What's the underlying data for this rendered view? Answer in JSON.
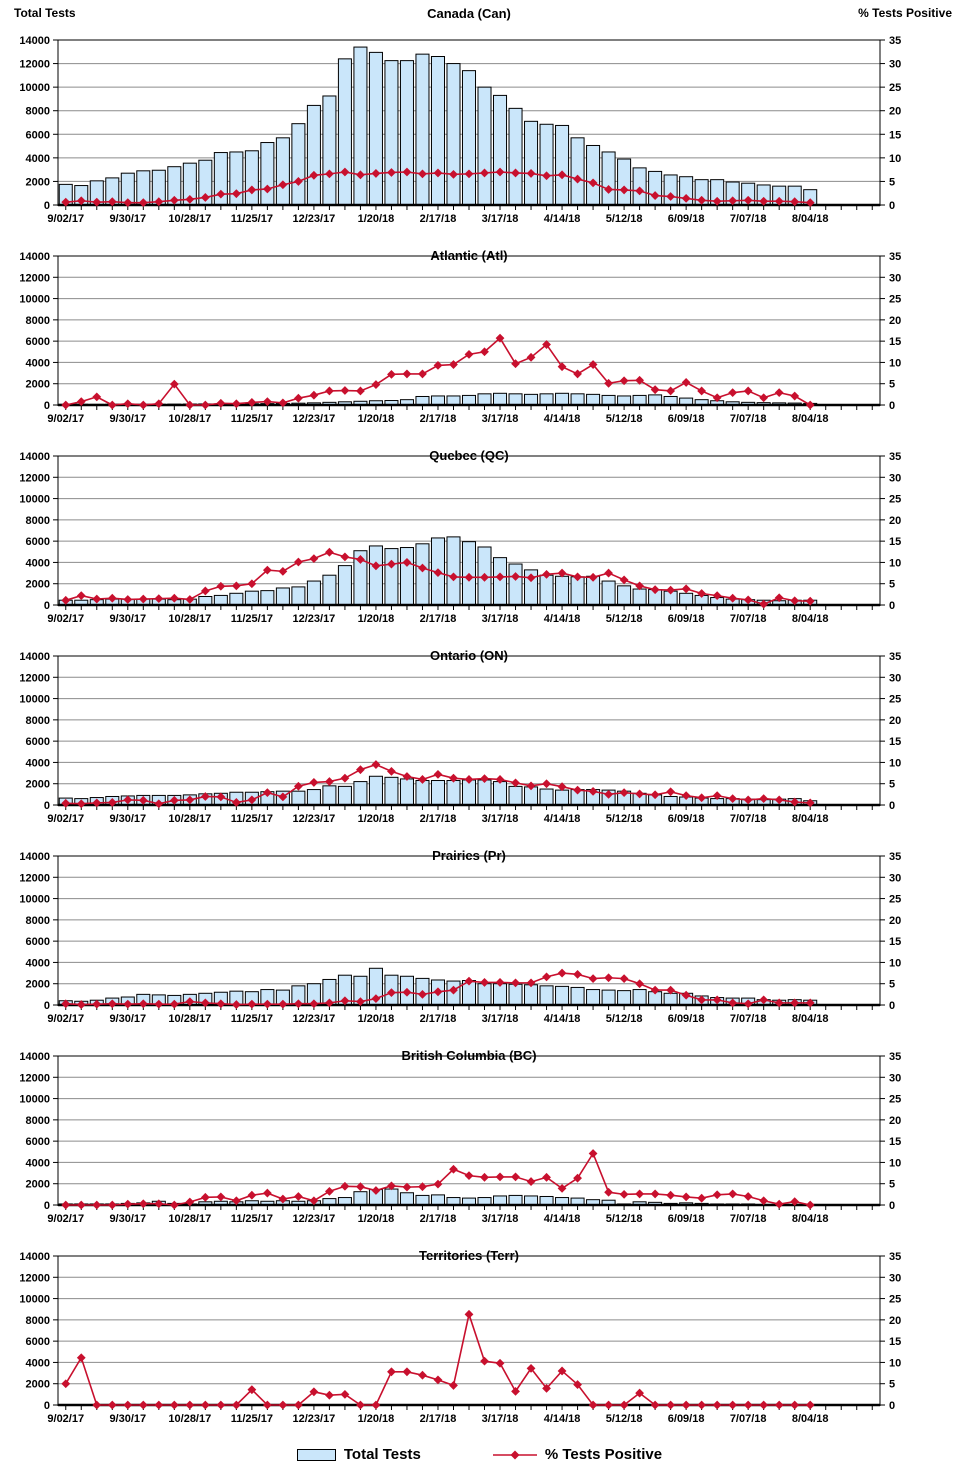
{
  "page": {
    "left_axis_label": "Total Tests",
    "right_axis_label": "% Tests  Positive"
  },
  "legend": {
    "bar_label": "Total Tests",
    "line_label": "% Tests Positive"
  },
  "colors": {
    "background": "#FFFFFF",
    "bar_fill": "#CAE6FA",
    "bar_border": "#000000",
    "line": "#C8102E",
    "grid": "#8C8C8C",
    "axis": "#000000",
    "text": "#000000"
  },
  "axes": {
    "y_left": {
      "label": "Total Tests",
      "min": 0,
      "max": 14000,
      "step": 2000
    },
    "y_right": {
      "label": "% Tests Positive",
      "min": 0,
      "max": 35,
      "step": 5
    },
    "x": {
      "tick_labels": [
        "9/02/17",
        "9/30/17",
        "10/28/17",
        "11/25/17",
        "12/23/17",
        "1/20/18",
        "2/17/18",
        "3/17/18",
        "4/14/18",
        "5/12/18",
        "6/09/18",
        "7/07/18",
        "8/04/18"
      ],
      "label_every_n_weeks": 4,
      "weeks_total": 53,
      "weeks_with_data": 49
    }
  },
  "chart_data": [
    {
      "type": "bar+line",
      "title": "Canada (Can)",
      "series": [
        {
          "name": "Total Tests",
          "axis": "left",
          "values": [
            1750,
            1650,
            2050,
            2300,
            2700,
            2900,
            2950,
            3250,
            3550,
            3800,
            4450,
            4500,
            4600,
            5300,
            5700,
            6900,
            8450,
            9250,
            12400,
            13400,
            12950,
            12250,
            12250,
            12800,
            12600,
            12000,
            11400,
            10000,
            9300,
            8200,
            7100,
            6850,
            6750,
            5700,
            5050,
            4500,
            3900,
            3150,
            2850,
            2550,
            2400,
            2150,
            2150,
            1950,
            1850,
            1700,
            1600,
            1600,
            1300
          ]
        },
        {
          "name": "% Tests Positive",
          "axis": "right",
          "values": [
            0.6,
            0.9,
            0.6,
            0.7,
            0.5,
            0.5,
            0.7,
            1.0,
            1.2,
            1.6,
            2.3,
            2.4,
            3.2,
            3.4,
            4.3,
            5.0,
            6.3,
            6.6,
            7.0,
            6.4,
            6.7,
            6.9,
            7.0,
            6.6,
            6.8,
            6.5,
            6.6,
            6.8,
            7.0,
            6.8,
            6.7,
            6.2,
            6.4,
            5.5,
            4.7,
            3.3,
            3.2,
            3.0,
            2.0,
            1.8,
            1.4,
            1.0,
            0.8,
            0.9,
            1.0,
            0.8,
            0.8,
            0.7,
            0.5
          ]
        }
      ]
    },
    {
      "type": "bar+line",
      "title": "Atlantic (Atl)",
      "series": [
        {
          "name": "Total Tests",
          "axis": "left",
          "values": [
            60,
            70,
            60,
            70,
            60,
            60,
            70,
            80,
            90,
            100,
            100,
            110,
            120,
            130,
            150,
            170,
            200,
            250,
            300,
            350,
            400,
            420,
            500,
            800,
            850,
            850,
            900,
            1050,
            1100,
            1050,
            1000,
            1050,
            1100,
            1050,
            1000,
            900,
            850,
            900,
            950,
            800,
            650,
            500,
            400,
            300,
            250,
            220,
            200,
            180,
            150
          ]
        },
        {
          "name": "% Tests Positive",
          "axis": "right",
          "values": [
            0,
            0.8,
            1.9,
            0,
            0.3,
            0,
            0.3,
            4.9,
            0,
            0,
            0.4,
            0.3,
            0.6,
            0.8,
            0.5,
            1.6,
            2.3,
            3.3,
            3.4,
            3.3,
            4.8,
            7.2,
            7.3,
            7.3,
            9.3,
            9.5,
            11.9,
            12.5,
            15.7,
            9.7,
            11.2,
            14.2,
            9.0,
            7.3,
            9.5,
            5.1,
            5.7,
            5.8,
            3.6,
            3.3,
            5.3,
            3.3,
            1.7,
            2.9,
            3.3,
            1.7,
            2.9,
            2.1,
            0
          ]
        }
      ]
    },
    {
      "type": "bar+line",
      "title": "Quebec (QC)",
      "series": [
        {
          "name": "Total Tests",
          "axis": "left",
          "values": [
            450,
            450,
            500,
            550,
            550,
            550,
            550,
            500,
            550,
            800,
            900,
            1100,
            1300,
            1350,
            1600,
            1700,
            2250,
            2800,
            3700,
            5100,
            5550,
            5300,
            5400,
            5750,
            6300,
            6400,
            5950,
            5450,
            4450,
            3850,
            3300,
            2800,
            2700,
            2650,
            2700,
            2250,
            1800,
            1500,
            1450,
            1300,
            1100,
            900,
            700,
            550,
            500,
            450,
            400,
            450,
            450
          ]
        },
        {
          "name": "% Tests Positive",
          "axis": "right",
          "values": [
            1.1,
            2.2,
            1.4,
            1.6,
            1.3,
            1.4,
            1.5,
            1.6,
            1.3,
            3.3,
            4.4,
            4.5,
            5.0,
            8.2,
            7.9,
            10.1,
            10.9,
            12.4,
            11.3,
            10.7,
            9.2,
            9.6,
            10.0,
            8.7,
            7.6,
            6.6,
            6.5,
            6.5,
            6.6,
            6.7,
            6.4,
            7.2,
            7.5,
            6.6,
            6.5,
            7.5,
            5.9,
            4.5,
            3.6,
            3.5,
            3.8,
            2.7,
            2.2,
            1.6,
            1.2,
            0.2,
            1.7,
            1.0,
            0.9
          ]
        }
      ]
    },
    {
      "type": "bar+line",
      "title": "Ontario (ON)",
      "series": [
        {
          "name": "Total Tests",
          "axis": "left",
          "values": [
            650,
            600,
            700,
            800,
            850,
            900,
            900,
            900,
            950,
            1050,
            1100,
            1200,
            1200,
            1250,
            1300,
            1300,
            1450,
            1800,
            1750,
            2200,
            2700,
            2600,
            2450,
            2300,
            2300,
            2300,
            2350,
            2350,
            2200,
            1750,
            1700,
            1500,
            1400,
            1450,
            1450,
            1400,
            1300,
            1100,
            950,
            800,
            750,
            650,
            600,
            600,
            550,
            500,
            550,
            600,
            400
          ]
        },
        {
          "name": "% Tests Positive",
          "axis": "right",
          "values": [
            0.4,
            0.3,
            0.5,
            0.6,
            1.2,
            1.1,
            0.3,
            1.1,
            1.2,
            2.0,
            1.9,
            0.6,
            1.2,
            2.9,
            1.9,
            4.4,
            5.3,
            5.5,
            6.3,
            8.3,
            9.5,
            7.9,
            6.7,
            6.0,
            7.2,
            6.3,
            6.0,
            6.2,
            6.0,
            5.2,
            4.5,
            5.0,
            4.3,
            3.5,
            3.2,
            2.5,
            2.9,
            2.6,
            2.4,
            3.1,
            2.2,
            1.7,
            2.2,
            1.5,
            1.2,
            1.5,
            1.2,
            0.7,
            0.5
          ]
        }
      ]
    },
    {
      "type": "bar+line",
      "title": "Prairies (Pr)",
      "series": [
        {
          "name": "Total Tests",
          "axis": "left",
          "values": [
            400,
            350,
            450,
            650,
            750,
            1000,
            950,
            900,
            1000,
            1100,
            1200,
            1300,
            1250,
            1450,
            1400,
            1800,
            2000,
            2400,
            2800,
            2700,
            3450,
            2800,
            2700,
            2500,
            2350,
            2250,
            2300,
            2000,
            2000,
            1950,
            1900,
            1800,
            1750,
            1650,
            1450,
            1400,
            1350,
            1450,
            1250,
            1100,
            1100,
            850,
            700,
            650,
            650,
            500,
            450,
            500,
            450
          ]
        },
        {
          "name": "% Tests Positive",
          "axis": "right",
          "values": [
            0.3,
            0.1,
            0.2,
            0.3,
            0.2,
            0.3,
            0.2,
            0.2,
            0.8,
            0.5,
            0.3,
            0.1,
            0.2,
            0.2,
            0.2,
            0.3,
            0.3,
            0.5,
            1.0,
            0.8,
            1.5,
            2.9,
            3.0,
            2.5,
            3.1,
            3.5,
            5.6,
            5.3,
            5.3,
            5.2,
            5.2,
            6.6,
            7.5,
            7.2,
            6.2,
            6.4,
            6.2,
            5.0,
            3.5,
            3.5,
            2.3,
            1.2,
            1.2,
            0.5,
            0.3,
            1.2,
            0.5,
            0.5,
            0.5
          ]
        }
      ]
    },
    {
      "type": "bar+line",
      "title": "British Columbia (BC)",
      "series": [
        {
          "name": "Total Tests",
          "axis": "left",
          "values": [
            100,
            100,
            100,
            100,
            150,
            200,
            350,
            150,
            100,
            300,
            350,
            300,
            400,
            350,
            400,
            350,
            400,
            600,
            700,
            1250,
            1450,
            1500,
            1150,
            900,
            950,
            700,
            650,
            700,
            850,
            900,
            850,
            800,
            700,
            650,
            500,
            450,
            100,
            300,
            250,
            150,
            200,
            150,
            100,
            100,
            100,
            50,
            50,
            50,
            50
          ]
        },
        {
          "name": "% Tests Positive",
          "axis": "right",
          "values": [
            0,
            0,
            0,
            0,
            0.2,
            0.3,
            0.3,
            0,
            0.7,
            1.8,
            1.9,
            1.0,
            2.3,
            2.8,
            1.4,
            2.0,
            1.0,
            3.2,
            4.4,
            4.3,
            3.4,
            4.5,
            4.2,
            4.3,
            4.9,
            8.4,
            6.9,
            6.5,
            6.6,
            6.6,
            5.5,
            6.5,
            3.9,
            6.3,
            12.1,
            3.0,
            2.5,
            2.6,
            2.6,
            2.3,
            1.9,
            1.6,
            2.4,
            2.6,
            2.0,
            1.0,
            0.2,
            0.8,
            0
          ]
        }
      ]
    },
    {
      "type": "bar+line",
      "title": "Territories (Terr)",
      "series": [
        {
          "name": "Total Tests",
          "axis": "left",
          "values": [
            0,
            0,
            0,
            0,
            0,
            0,
            0,
            0,
            0,
            0,
            0,
            0,
            0,
            0,
            0,
            0,
            0,
            0,
            0,
            0,
            0,
            0,
            0,
            0,
            0,
            0,
            0,
            0,
            0,
            0,
            0,
            0,
            0,
            0,
            0,
            0,
            0,
            0,
            0,
            0,
            0,
            0,
            0,
            0,
            0,
            0,
            0,
            0,
            0
          ]
        },
        {
          "name": "% Tests Positive",
          "axis": "right",
          "values": [
            5.0,
            11.1,
            0,
            0,
            0,
            0,
            0,
            0,
            0,
            0,
            0,
            0,
            3.6,
            0,
            0,
            0,
            3.1,
            2.3,
            2.5,
            0,
            0,
            7.8,
            7.8,
            7.0,
            5.9,
            4.6,
            21.3,
            10.3,
            9.8,
            3.2,
            8.6,
            3.9,
            8.0,
            4.8,
            0,
            0,
            0,
            2.8,
            0,
            0,
            0,
            0,
            0,
            0,
            0,
            0,
            0,
            0,
            0
          ]
        }
      ]
    }
  ]
}
